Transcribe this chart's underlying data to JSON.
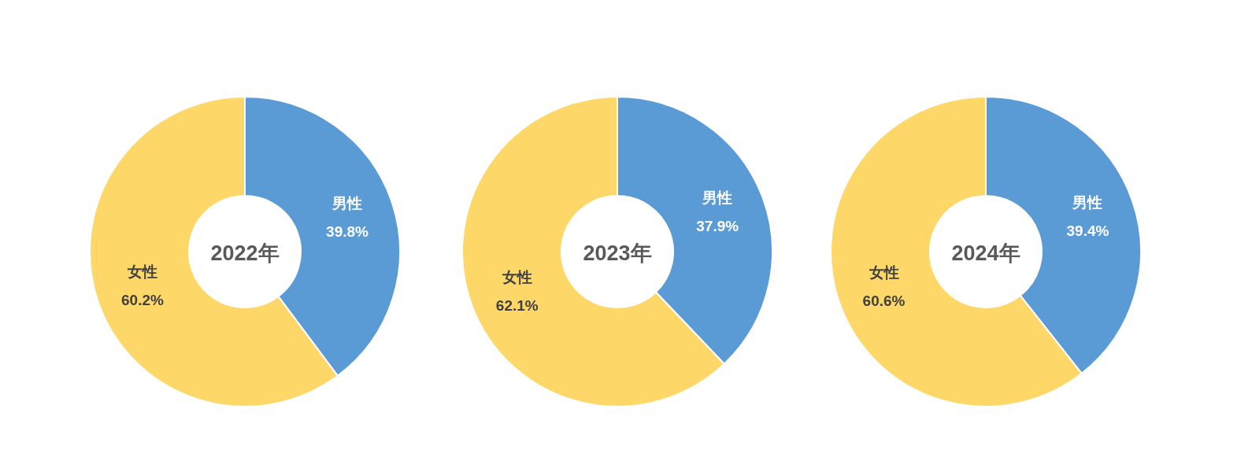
{
  "chart_data": [
    {
      "type": "donut",
      "title": "2022年",
      "categories": [
        "男性",
        "女性"
      ],
      "values": [
        39.8,
        60.2
      ],
      "value_labels": [
        "39.8%",
        "60.2%"
      ],
      "colors": [
        "#5b9bd5",
        "#fdd868"
      ],
      "legend": false
    },
    {
      "type": "donut",
      "title": "2023年",
      "categories": [
        "男性",
        "女性"
      ],
      "values": [
        37.9,
        62.1
      ],
      "value_labels": [
        "37.9%",
        "62.1%"
      ],
      "colors": [
        "#5b9bd5",
        "#fdd868"
      ],
      "legend": false
    },
    {
      "type": "donut",
      "title": "2024年",
      "categories": [
        "男性",
        "女性"
      ],
      "values": [
        39.4,
        60.6
      ],
      "value_labels": [
        "39.4%",
        "60.6%"
      ],
      "colors": [
        "#5b9bd5",
        "#fdd868"
      ],
      "legend": false
    }
  ]
}
